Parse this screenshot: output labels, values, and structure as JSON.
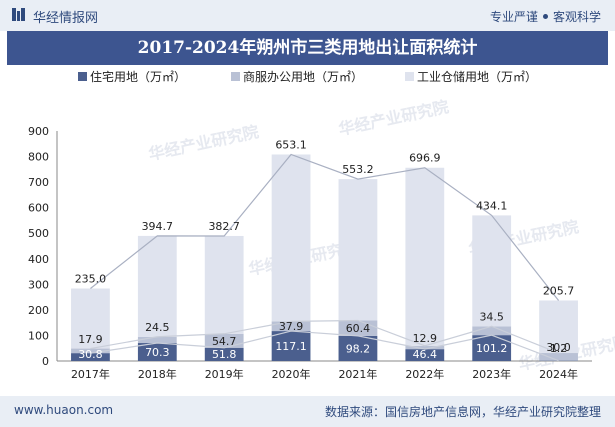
{
  "header": {
    "brand": "华经情报网",
    "tagline_left": "专业严谨",
    "tagline_right": "客观科学"
  },
  "chart_data": {
    "type": "bar",
    "stacked": true,
    "title": "2017-2024年朔州市三类用地出让面积统计",
    "categories": [
      "2017年",
      "2018年",
      "2019年",
      "2020年",
      "2021年",
      "2022年",
      "2023年",
      "2024年"
    ],
    "series": [
      {
        "name": "住宅用地（万㎡）",
        "color": "#4b5f8e",
        "values": [
          30.8,
          70.3,
          51.8,
          117.1,
          98.2,
          46.4,
          101.2,
          1.2
        ]
      },
      {
        "name": "商服办公用地（万㎡）",
        "color": "#b9c1d5",
        "values": [
          17.9,
          24.5,
          54.7,
          37.9,
          60.4,
          12.9,
          34.5,
          30.0
        ]
      },
      {
        "name": "工业仓储用地（万㎡）",
        "color": "#dfe3ee",
        "values": [
          235.0,
          394.7,
          382.7,
          653.1,
          553.2,
          696.9,
          434.1,
          205.7
        ]
      }
    ],
    "ylim": [
      0,
      900
    ],
    "yticks": [
      0,
      100,
      200,
      300,
      400,
      500,
      600,
      700,
      800,
      900
    ],
    "legend_position": "top",
    "grid": false,
    "watermark": "华经产业研究院"
  },
  "footer": {
    "site": "www.huaon.com",
    "source": "数据来源：国信房地产信息网，华经产业研究院整理"
  }
}
